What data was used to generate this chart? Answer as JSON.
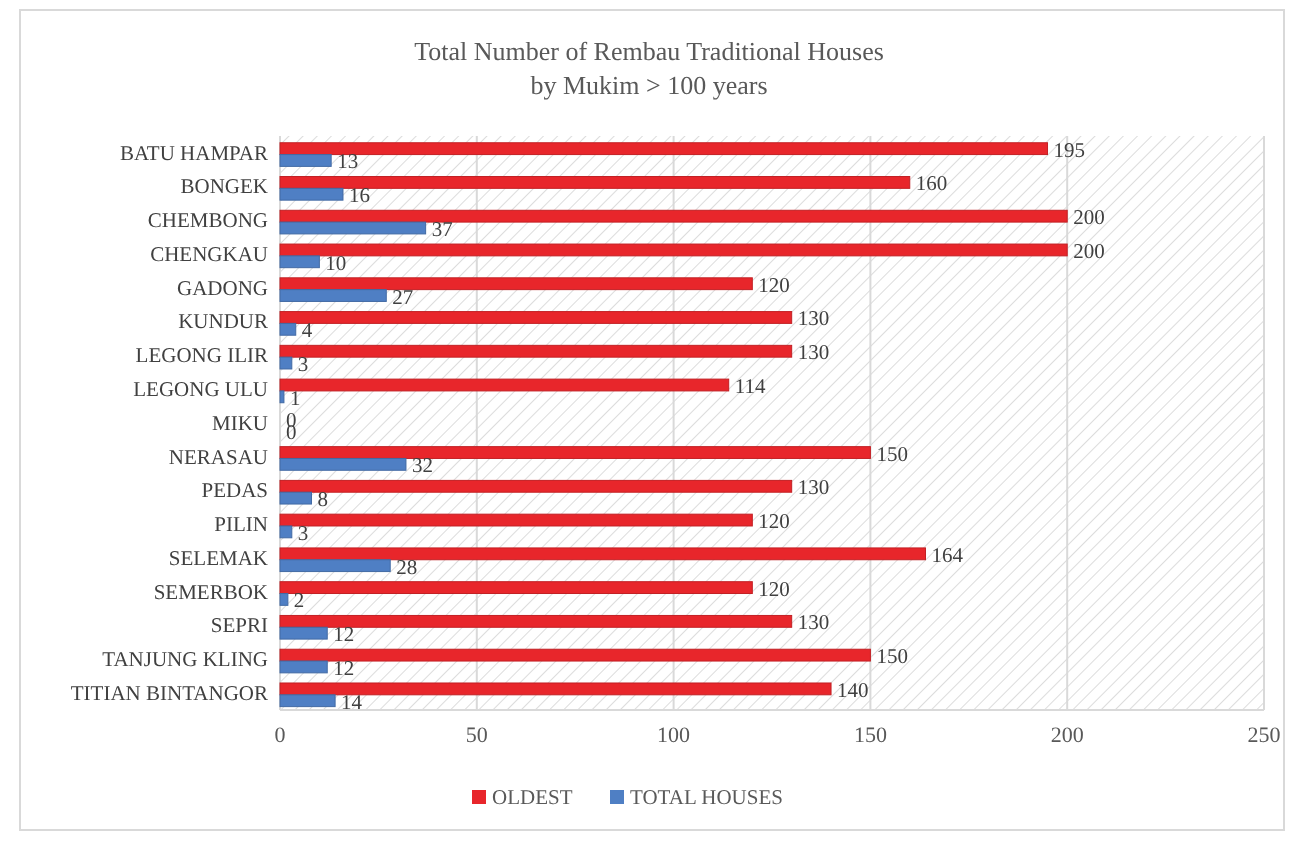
{
  "chart_data": {
    "type": "bar",
    "orientation": "horizontal",
    "title": "Total Number of Rembau Traditional Houses",
    "subtitle": "by Mukim > 100 years",
    "categories": [
      "BATU HAMPAR",
      "BONGEK",
      "CHEMBONG",
      "CHENGKAU",
      "GADONG",
      "KUNDUR",
      "LEGONG ILIR",
      "LEGONG ULU",
      "MIKU",
      "NERASAU",
      "PEDAS",
      "PILIN",
      "SELEMAK",
      "SEMERBOK",
      "SEPRI",
      "TANJUNG KLING",
      "TITIAN BINTANGOR"
    ],
    "series": [
      {
        "name": "OLDEST",
        "color": "#e8262b",
        "values": [
          195,
          160,
          200,
          200,
          120,
          130,
          130,
          114,
          0,
          150,
          130,
          120,
          164,
          120,
          130,
          150,
          140
        ]
      },
      {
        "name": "TOTAL HOUSES",
        "color": "#4f7fc4",
        "values": [
          13,
          16,
          37,
          10,
          27,
          4,
          3,
          1,
          0,
          32,
          8,
          3,
          28,
          2,
          12,
          12,
          14
        ]
      }
    ],
    "xlim": [
      0,
      250
    ],
    "xticks": [
      0,
      50,
      100,
      150,
      200,
      250
    ],
    "grid": "x",
    "legend": "bottom",
    "data_labels": true
  }
}
